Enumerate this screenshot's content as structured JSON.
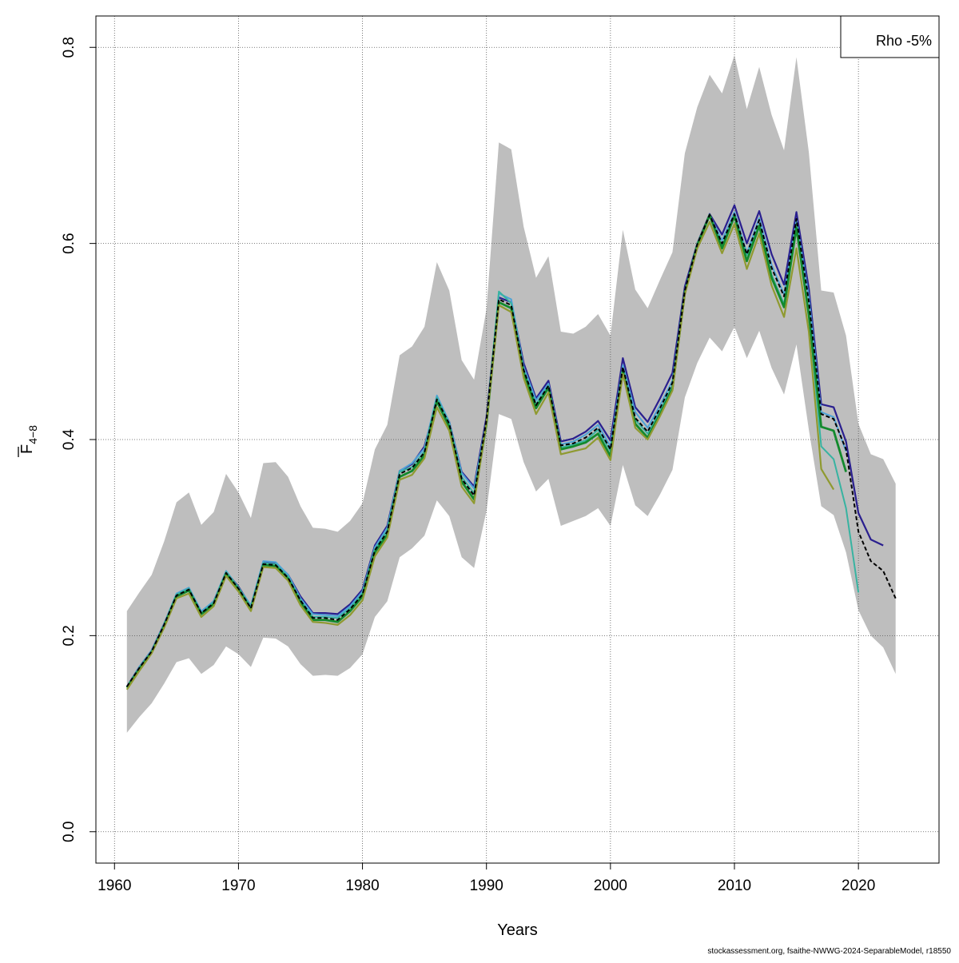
{
  "chart_data": {
    "type": "line",
    "xlabel": "Years",
    "ylabel_main": "F",
    "ylabel_sub": "4−8",
    "xlim": [
      1958.5,
      2026.5
    ],
    "ylim": [
      -0.032,
      0.832
    ],
    "x_ticks": [
      1960,
      1970,
      1980,
      1990,
      2000,
      2010,
      2020
    ],
    "x_tick_labels": [
      "1960",
      "1970",
      "1980",
      "1990",
      "2000",
      "2010",
      "2020"
    ],
    "y_ticks": [
      0.0,
      0.2,
      0.4,
      0.6,
      0.8
    ],
    "y_tick_labels": [
      "0.0",
      "0.2",
      "0.4",
      "0.6",
      "0.8"
    ],
    "grid": true,
    "legend": {
      "position": "top-right",
      "text": "Rho -5%"
    },
    "confidence_band": {
      "color": "#bebebe",
      "years": [
        1961,
        1962,
        1963,
        1964,
        1965,
        1966,
        1967,
        1968,
        1969,
        1970,
        1971,
        1972,
        1973,
        1974,
        1975,
        1976,
        1977,
        1978,
        1979,
        1980,
        1981,
        1982,
        1983,
        1984,
        1985,
        1986,
        1987,
        1988,
        1989,
        1990,
        1991,
        1992,
        1993,
        1994,
        1995,
        1996,
        1997,
        1998,
        1999,
        2000,
        2001,
        2002,
        2003,
        2004,
        2005,
        2006,
        2007,
        2008,
        2009,
        2010,
        2011,
        2012,
        2013,
        2014,
        2015,
        2016,
        2017,
        2018,
        2019,
        2020,
        2021,
        2022,
        2023
      ],
      "upper": [
        0.225,
        0.244,
        0.262,
        0.296,
        0.336,
        0.346,
        0.313,
        0.326,
        0.365,
        0.346,
        0.32,
        0.376,
        0.377,
        0.362,
        0.332,
        0.31,
        0.309,
        0.306,
        0.317,
        0.335,
        0.39,
        0.415,
        0.486,
        0.495,
        0.515,
        0.581,
        0.552,
        0.481,
        0.461,
        0.533,
        0.703,
        0.696,
        0.617,
        0.565,
        0.587,
        0.51,
        0.508,
        0.515,
        0.528,
        0.506,
        0.614,
        0.553,
        0.534,
        0.563,
        0.591,
        0.692,
        0.739,
        0.772,
        0.753,
        0.792,
        0.737,
        0.78,
        0.731,
        0.695,
        0.79,
        0.693,
        0.552,
        0.55,
        0.506,
        0.416,
        0.385,
        0.38,
        0.355
      ],
      "lower": [
        0.101,
        0.117,
        0.131,
        0.151,
        0.173,
        0.177,
        0.161,
        0.17,
        0.189,
        0.181,
        0.168,
        0.198,
        0.197,
        0.189,
        0.171,
        0.159,
        0.16,
        0.159,
        0.167,
        0.181,
        0.219,
        0.235,
        0.28,
        0.289,
        0.302,
        0.338,
        0.322,
        0.28,
        0.269,
        0.327,
        0.426,
        0.421,
        0.377,
        0.347,
        0.36,
        0.312,
        0.317,
        0.322,
        0.33,
        0.312,
        0.374,
        0.333,
        0.322,
        0.344,
        0.369,
        0.443,
        0.478,
        0.504,
        0.49,
        0.515,
        0.483,
        0.511,
        0.473,
        0.446,
        0.497,
        0.41,
        0.332,
        0.323,
        0.285,
        0.226,
        0.2,
        0.188,
        0.161
      ]
    },
    "series": [
      {
        "color": "#2a1f8f",
        "width": 2.2,
        "start": 1961,
        "values": [
          0.148,
          0.168,
          0.185,
          0.212,
          0.242,
          0.248,
          0.224,
          0.235,
          0.265,
          0.25,
          0.23,
          0.275,
          0.274,
          0.262,
          0.24,
          0.223,
          0.223,
          0.222,
          0.232,
          0.247,
          0.292,
          0.312,
          0.368,
          0.375,
          0.393,
          0.44,
          0.418,
          0.367,
          0.352,
          0.423,
          0.545,
          0.54,
          0.478,
          0.442,
          0.46,
          0.398,
          0.401,
          0.408,
          0.419,
          0.399,
          0.483,
          0.433,
          0.418,
          0.442,
          0.468,
          0.556,
          0.6,
          0.63,
          0.609,
          0.639,
          0.6,
          0.633,
          0.589,
          0.558,
          0.632,
          0.554,
          0.436,
          0.433,
          0.398,
          0.325,
          0.298,
          0.292
        ]
      },
      {
        "color": "#4da3d6",
        "width": 2.0,
        "start": 1961,
        "values": [
          0.148,
          0.168,
          0.185,
          0.212,
          0.243,
          0.249,
          0.225,
          0.235,
          0.266,
          0.249,
          0.231,
          0.276,
          0.275,
          0.262,
          0.238,
          0.222,
          0.221,
          0.22,
          0.23,
          0.245,
          0.29,
          0.31,
          0.368,
          0.376,
          0.391,
          0.445,
          0.418,
          0.366,
          0.35,
          0.419,
          0.549,
          0.543,
          0.474,
          0.44,
          0.457,
          0.395,
          0.398,
          0.405,
          0.415,
          0.393,
          0.476,
          0.428,
          0.412,
          0.435,
          0.46,
          0.552,
          0.599,
          0.629,
          0.603,
          0.632,
          0.59,
          0.626,
          0.578,
          0.548,
          0.624,
          0.546,
          0.428,
          0.423,
          0.388
        ]
      },
      {
        "color": "#37b3a1",
        "width": 2.0,
        "start": 1961,
        "values": [
          0.147,
          0.167,
          0.184,
          0.211,
          0.242,
          0.248,
          0.223,
          0.234,
          0.265,
          0.249,
          0.229,
          0.274,
          0.273,
          0.26,
          0.236,
          0.219,
          0.219,
          0.218,
          0.228,
          0.243,
          0.288,
          0.307,
          0.367,
          0.372,
          0.388,
          0.443,
          0.416,
          0.362,
          0.345,
          0.417,
          0.551,
          0.539,
          0.47,
          0.436,
          0.455,
          0.392,
          0.395,
          0.399,
          0.41,
          0.388,
          0.47,
          0.42,
          0.406,
          0.43,
          0.455,
          0.551,
          0.6,
          0.628,
          0.598,
          0.628,
          0.588,
          0.619,
          0.568,
          0.538,
          0.62,
          0.528,
          0.393,
          0.38,
          0.33,
          0.244
        ]
      },
      {
        "color": "#138a2d",
        "width": 2.8,
        "start": 1961,
        "values": [
          0.147,
          0.166,
          0.183,
          0.21,
          0.24,
          0.246,
          0.222,
          0.232,
          0.263,
          0.247,
          0.227,
          0.272,
          0.271,
          0.258,
          0.234,
          0.216,
          0.216,
          0.214,
          0.225,
          0.24,
          0.285,
          0.303,
          0.362,
          0.368,
          0.384,
          0.439,
          0.413,
          0.357,
          0.339,
          0.416,
          0.54,
          0.534,
          0.468,
          0.432,
          0.453,
          0.39,
          0.393,
          0.397,
          0.406,
          0.383,
          0.47,
          0.416,
          0.402,
          0.426,
          0.452,
          0.55,
          0.598,
          0.629,
          0.595,
          0.628,
          0.582,
          0.618,
          0.565,
          0.535,
          0.616,
          0.527,
          0.413,
          0.409,
          0.367
        ]
      },
      {
        "color": "#8f9a30",
        "width": 2.2,
        "start": 1961,
        "values": [
          0.145,
          0.164,
          0.182,
          0.208,
          0.238,
          0.243,
          0.219,
          0.23,
          0.261,
          0.245,
          0.225,
          0.27,
          0.269,
          0.256,
          0.231,
          0.214,
          0.213,
          0.211,
          0.221,
          0.236,
          0.281,
          0.3,
          0.359,
          0.364,
          0.381,
          0.433,
          0.409,
          0.352,
          0.335,
          0.417,
          0.537,
          0.53,
          0.463,
          0.426,
          0.448,
          0.385,
          0.388,
          0.391,
          0.402,
          0.379,
          0.467,
          0.412,
          0.4,
          0.424,
          0.45,
          0.548,
          0.595,
          0.622,
          0.59,
          0.62,
          0.574,
          0.61,
          0.557,
          0.525,
          0.595,
          0.51,
          0.37,
          0.349
        ]
      },
      {
        "color": "#000000",
        "width": 2.0,
        "dashed": true,
        "start": 1961,
        "values": [
          0.148,
          0.167,
          0.184,
          0.211,
          0.241,
          0.247,
          0.223,
          0.233,
          0.264,
          0.248,
          0.228,
          0.273,
          0.272,
          0.259,
          0.236,
          0.218,
          0.218,
          0.216,
          0.227,
          0.242,
          0.287,
          0.306,
          0.365,
          0.371,
          0.387,
          0.441,
          0.416,
          0.36,
          0.343,
          0.42,
          0.543,
          0.537,
          0.471,
          0.435,
          0.455,
          0.394,
          0.396,
          0.402,
          0.412,
          0.39,
          0.474,
          0.422,
          0.408,
          0.432,
          0.458,
          0.552,
          0.599,
          0.629,
          0.6,
          0.63,
          0.589,
          0.624,
          0.575,
          0.546,
          0.625,
          0.541,
          0.426,
          0.421,
          0.39,
          0.306,
          0.276,
          0.266,
          0.238
        ]
      }
    ]
  },
  "footer": {
    "source_text": "stockassessment.org, fsaithe-NWWG-2024-SeparableModel, r18550"
  }
}
